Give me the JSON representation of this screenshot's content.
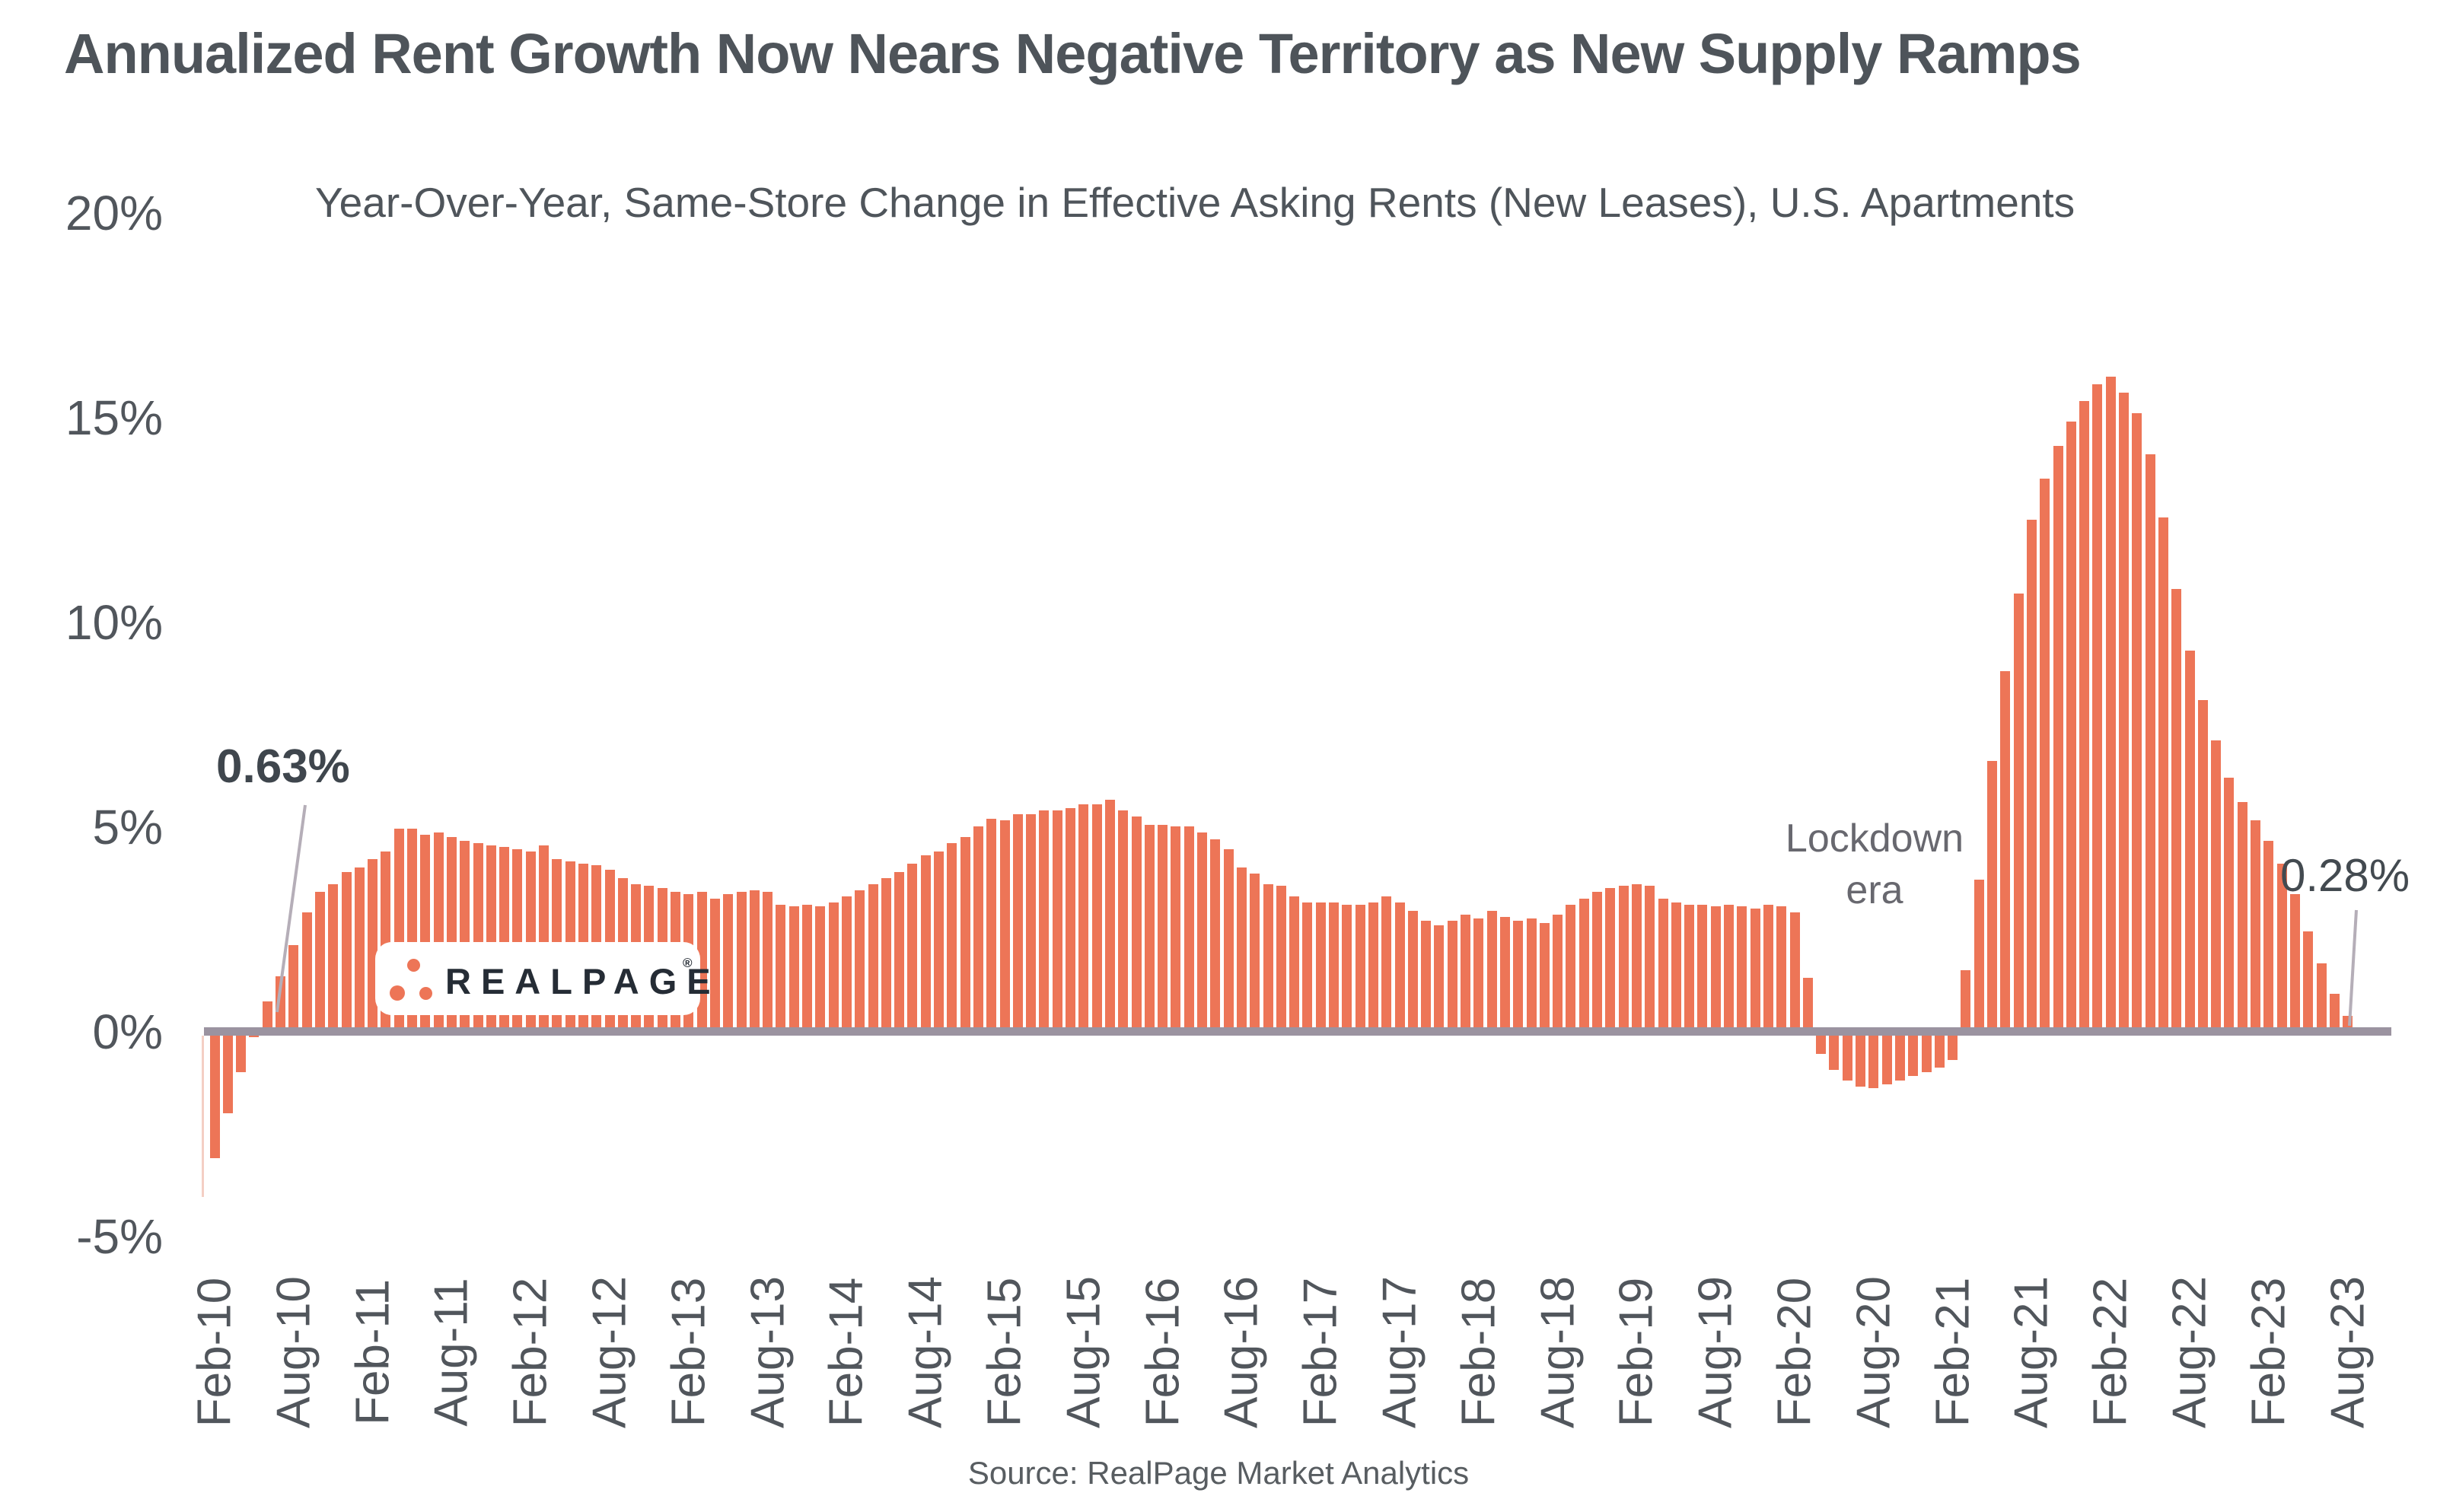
{
  "title": "Annualized Rent Growth Now Nears Negative Territory as New Supply Ramps",
  "subtitle": "Year-Over-Year, Same-Store Change in Effective Asking Rents (New Leases), U.S. Apartments",
  "source": "Source: RealPage Market Analytics",
  "annotations": {
    "first_point_label": "0.63%",
    "last_point_label": "0.28%",
    "lockdown_line1": "Lockdown",
    "lockdown_line2": "era"
  },
  "logo": {
    "brand": "REALPAGE",
    "registered": "®"
  },
  "colors": {
    "bar": "#ED7557",
    "axis_line": "#9B93A0",
    "title_text": "#4E545A",
    "axis_text": "#51565C",
    "annotation_text": "#3F464D",
    "lockdown_text": "#68686F",
    "leader_line": "#B5AEB8",
    "logo_text": "#252C35"
  },
  "chart_data": {
    "type": "bar",
    "title": "Annualized Rent Growth Now Nears Negative Territory as New Supply Ramps",
    "subtitle": "Year-Over-Year, Same-Store Change in Effective Asking Rents (New Leases), U.S. Apartments",
    "ylabel": "",
    "xlabel": "",
    "grid": false,
    "legend": "none",
    "ylim": [
      -5.5,
      20
    ],
    "y_ticks": [
      "20%",
      "15%",
      "10%",
      "5%",
      "0%",
      "-5%"
    ],
    "y_tick_values": [
      20,
      15,
      10,
      5,
      0,
      -5
    ],
    "x_tick_every": 6,
    "annotated_points": [
      {
        "x": "Jun-10",
        "value": 0.63,
        "label": "0.63%"
      },
      {
        "x": "Aug-23",
        "value": 0.28,
        "label": "0.28%"
      }
    ],
    "x": [
      "Feb-10",
      "Mar-10",
      "Apr-10",
      "May-10",
      "Jun-10",
      "Jul-10",
      "Aug-10",
      "Sep-10",
      "Oct-10",
      "Nov-10",
      "Dec-10",
      "Jan-11",
      "Feb-11",
      "Mar-11",
      "Apr-11",
      "May-11",
      "Jun-11",
      "Jul-11",
      "Aug-11",
      "Sep-11",
      "Oct-11",
      "Nov-11",
      "Dec-11",
      "Jan-12",
      "Feb-12",
      "Mar-12",
      "Apr-12",
      "May-12",
      "Jun-12",
      "Jul-12",
      "Aug-12",
      "Sep-12",
      "Oct-12",
      "Nov-12",
      "Dec-12",
      "Jan-13",
      "Feb-13",
      "Mar-13",
      "Apr-13",
      "May-13",
      "Jun-13",
      "Jul-13",
      "Aug-13",
      "Sep-13",
      "Oct-13",
      "Nov-13",
      "Dec-13",
      "Jan-14",
      "Feb-14",
      "Mar-14",
      "Apr-14",
      "May-14",
      "Jun-14",
      "Jul-14",
      "Aug-14",
      "Sep-14",
      "Oct-14",
      "Nov-14",
      "Dec-14",
      "Jan-15",
      "Feb-15",
      "Mar-15",
      "Apr-15",
      "May-15",
      "Jun-15",
      "Jul-15",
      "Aug-15",
      "Sep-15",
      "Oct-15",
      "Nov-15",
      "Dec-15",
      "Jan-16",
      "Feb-16",
      "Mar-16",
      "Apr-16",
      "May-16",
      "Jun-16",
      "Jul-16",
      "Aug-16",
      "Sep-16",
      "Oct-16",
      "Nov-16",
      "Dec-16",
      "Jan-17",
      "Feb-17",
      "Mar-17",
      "Apr-17",
      "May-17",
      "Jun-17",
      "Jul-17",
      "Aug-17",
      "Sep-17",
      "Oct-17",
      "Nov-17",
      "Dec-17",
      "Jan-18",
      "Feb-18",
      "Mar-18",
      "Apr-18",
      "May-18",
      "Jun-18",
      "Jul-18",
      "Aug-18",
      "Sep-18",
      "Oct-18",
      "Nov-18",
      "Dec-18",
      "Jan-19",
      "Feb-19",
      "Mar-19",
      "Apr-19",
      "May-19",
      "Jun-19",
      "Jul-19",
      "Aug-19",
      "Sep-19",
      "Oct-19",
      "Nov-19",
      "Dec-19",
      "Jan-20",
      "Feb-20",
      "Mar-20",
      "Apr-20",
      "May-20",
      "Jun-20",
      "Jul-20",
      "Aug-20",
      "Sep-20",
      "Oct-20",
      "Nov-20",
      "Dec-20",
      "Jan-21",
      "Feb-21",
      "Mar-21",
      "Apr-21",
      "May-21",
      "Jun-21",
      "Jul-21",
      "Aug-21",
      "Sep-21",
      "Oct-21",
      "Nov-21",
      "Dec-21",
      "Jan-22",
      "Feb-22",
      "Mar-22",
      "Apr-22",
      "May-22",
      "Jun-22",
      "Jul-22",
      "Aug-22",
      "Sep-22",
      "Oct-22",
      "Nov-22",
      "Dec-22",
      "Jan-23",
      "Feb-23",
      "Mar-23",
      "Apr-23",
      "May-23",
      "Jun-23",
      "Jul-23",
      "Aug-23"
    ],
    "values": [
      -3.1,
      -2.0,
      -1.0,
      -0.15,
      0.63,
      1.25,
      2.0,
      2.8,
      3.3,
      3.5,
      3.8,
      3.9,
      4.1,
      4.3,
      4.85,
      4.85,
      4.7,
      4.75,
      4.65,
      4.55,
      4.5,
      4.45,
      4.4,
      4.35,
      4.3,
      4.45,
      4.1,
      4.05,
      4.0,
      3.95,
      3.85,
      3.65,
      3.5,
      3.45,
      3.4,
      3.3,
      3.25,
      3.3,
      3.15,
      3.25,
      3.3,
      3.35,
      3.3,
      3.0,
      2.95,
      3.0,
      2.95,
      3.05,
      3.2,
      3.35,
      3.5,
      3.65,
      3.8,
      4.0,
      4.2,
      4.3,
      4.5,
      4.65,
      4.9,
      5.1,
      5.05,
      5.2,
      5.2,
      5.3,
      5.3,
      5.35,
      5.45,
      5.45,
      5.55,
      5.3,
      5.15,
      4.95,
      4.95,
      4.9,
      4.9,
      4.75,
      4.6,
      4.35,
      3.9,
      3.75,
      3.5,
      3.45,
      3.2,
      3.05,
      3.05,
      3.05,
      3.0,
      3.0,
      3.05,
      3.2,
      3.05,
      2.85,
      2.6,
      2.5,
      2.6,
      2.75,
      2.65,
      2.85,
      2.7,
      2.6,
      2.65,
      2.55,
      2.75,
      3.0,
      3.15,
      3.3,
      3.4,
      3.45,
      3.5,
      3.45,
      3.15,
      3.05,
      3.0,
      3.0,
      2.95,
      3.0,
      2.95,
      2.9,
      3.0,
      2.95,
      2.8,
      1.2,
      -0.55,
      -0.95,
      -1.2,
      -1.35,
      -1.4,
      -1.3,
      -1.2,
      -1.1,
      -1.0,
      -0.9,
      -0.7,
      1.4,
      3.6,
      6.5,
      8.7,
      10.6,
      12.4,
      13.4,
      14.2,
      14.8,
      15.3,
      15.7,
      15.9,
      15.5,
      15.0,
      14.0,
      12.45,
      10.7,
      9.2,
      8.0,
      7.0,
      6.1,
      5.5,
      5.05,
      4.55,
      4.0,
      3.25,
      2.35,
      1.56,
      0.81,
      0.28
    ]
  }
}
